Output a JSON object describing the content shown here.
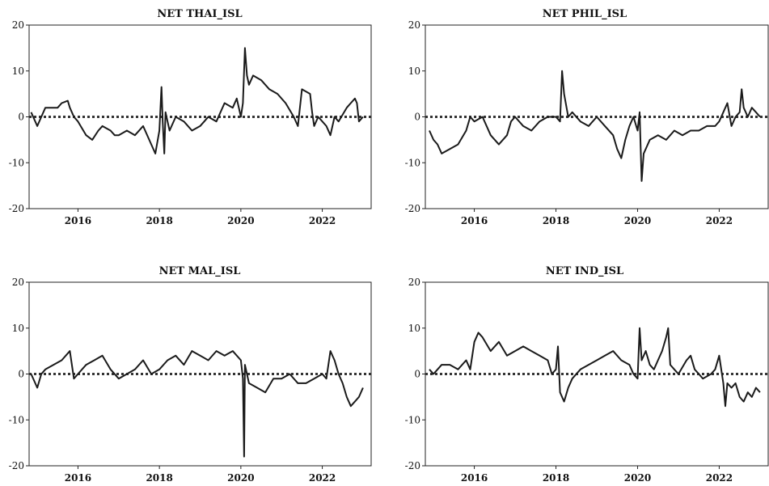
{
  "chart_data": [
    {
      "type": "line",
      "title": "NET THAI_ISL",
      "xlabel": "",
      "ylabel": "",
      "xlim": [
        2014.8,
        2023.2
      ],
      "ylim": [
        -20,
        20
      ],
      "x_ticks": [
        "2016",
        "2018",
        "2020",
        "2022"
      ],
      "y_ticks": [
        "20",
        "10",
        "0",
        "-10",
        "-20"
      ],
      "reference_line": 0,
      "series": [
        {
          "x": [
            2014.85,
            2015.0,
            2015.1,
            2015.2,
            2015.3,
            2015.5,
            2015.6,
            2015.75,
            2015.8,
            2015.9,
            2016.0,
            2016.2,
            2016.35,
            2016.5,
            2016.6,
            2016.8,
            2016.9,
            2017.0,
            2017.2,
            2017.4,
            2017.6,
            2017.8,
            2017.9,
            2018.0,
            2018.05,
            2018.08,
            2018.12,
            2018.15,
            2018.2,
            2018.25,
            2018.4,
            2018.6,
            2018.8,
            2019.0,
            2019.2,
            2019.4,
            2019.6,
            2019.8,
            2019.9,
            2020.0,
            2020.05,
            2020.1,
            2020.15,
            2020.2,
            2020.3,
            2020.5,
            2020.7,
            2020.9,
            2021.1,
            2021.3,
            2021.4,
            2021.5,
            2021.7,
            2021.75,
            2021.8,
            2021.9,
            2022.0,
            2022.1,
            2022.2,
            2022.3,
            2022.4,
            2022.6,
            2022.7,
            2022.8,
            2022.85,
            2022.9,
            2023.0
          ],
          "y": [
            1,
            -2,
            0,
            2,
            2,
            2,
            3,
            3.5,
            2,
            0,
            -1,
            -4,
            -5,
            -3,
            -2,
            -3,
            -4,
            -4,
            -3,
            -4,
            -2,
            -6,
            -8,
            -3,
            6.5,
            -1,
            -8,
            1,
            -1,
            -3,
            0,
            -1,
            -3,
            -2,
            0,
            -1,
            3,
            2,
            4,
            0,
            3,
            15,
            9,
            7,
            9,
            8,
            6,
            5,
            3,
            0,
            -2,
            6,
            5,
            1,
            -2,
            0,
            -1,
            -2,
            -4,
            0,
            -1,
            2,
            3,
            4,
            3,
            -1,
            0
          ]
        }
      ]
    },
    {
      "type": "line",
      "title": "NET PHIL_ISL",
      "xlabel": "",
      "ylabel": "",
      "xlim": [
        2014.8,
        2023.2
      ],
      "ylim": [
        -20,
        20
      ],
      "x_ticks": [
        "2016",
        "2018",
        "2020",
        "2022"
      ],
      "y_ticks": [
        "20",
        "10",
        "0",
        "-10",
        "-20"
      ],
      "reference_line": 0,
      "series": [
        {
          "x": [
            2014.9,
            2015.0,
            2015.1,
            2015.2,
            2015.4,
            2015.6,
            2015.8,
            2015.9,
            2016.0,
            2016.2,
            2016.4,
            2016.6,
            2016.8,
            2016.9,
            2017.0,
            2017.2,
            2017.4,
            2017.6,
            2017.8,
            2018.0,
            2018.1,
            2018.15,
            2018.2,
            2018.3,
            2018.4,
            2018.6,
            2018.8,
            2019.0,
            2019.2,
            2019.4,
            2019.5,
            2019.6,
            2019.7,
            2019.8,
            2019.9,
            2020.0,
            2020.05,
            2020.1,
            2020.15,
            2020.2,
            2020.3,
            2020.5,
            2020.7,
            2020.9,
            2021.1,
            2021.3,
            2021.5,
            2021.7,
            2021.9,
            2022.0,
            2022.1,
            2022.2,
            2022.3,
            2022.4,
            2022.5,
            2022.55,
            2022.6,
            2022.7,
            2022.8,
            2022.9,
            2023.0
          ],
          "y": [
            -3,
            -5,
            -6,
            -8,
            -7,
            -6,
            -3,
            0,
            -1,
            0,
            -4,
            -6,
            -4,
            -1,
            0,
            -2,
            -3,
            -1,
            0,
            0,
            -1,
            10,
            5,
            0,
            1,
            -1,
            -2,
            0,
            -2,
            -4,
            -7,
            -9,
            -5,
            -2,
            0,
            -3,
            1,
            -14,
            -8,
            -7,
            -5,
            -4,
            -5,
            -3,
            -4,
            -3,
            -3,
            -2,
            -2,
            -1,
            1,
            3,
            -2,
            0,
            1,
            6,
            2,
            0,
            2,
            1,
            0
          ]
        }
      ]
    },
    {
      "type": "line",
      "title": "NET MAL_ISL",
      "xlabel": "",
      "ylabel": "",
      "xlim": [
        2014.8,
        2023.2
      ],
      "ylim": [
        -20,
        20
      ],
      "x_ticks": [
        "2016",
        "2018",
        "2020",
        "2022"
      ],
      "y_ticks": [
        "20",
        "10",
        "0",
        "-10",
        "-20"
      ],
      "reference_line": 0,
      "series": [
        {
          "x": [
            2014.85,
            2015.0,
            2015.1,
            2015.2,
            2015.4,
            2015.6,
            2015.8,
            2015.9,
            2016.0,
            2016.2,
            2016.4,
            2016.6,
            2016.8,
            2017.0,
            2017.2,
            2017.4,
            2017.6,
            2017.8,
            2018.0,
            2018.2,
            2018.4,
            2018.6,
            2018.8,
            2019.0,
            2019.2,
            2019.4,
            2019.6,
            2019.8,
            2020.0,
            2020.05,
            2020.08,
            2020.1,
            2020.2,
            2020.4,
            2020.6,
            2020.8,
            2021.0,
            2021.2,
            2021.4,
            2021.6,
            2021.8,
            2022.0,
            2022.1,
            2022.2,
            2022.3,
            2022.4,
            2022.5,
            2022.6,
            2022.7,
            2022.8,
            2022.9,
            2023.0
          ],
          "y": [
            0,
            -3,
            0,
            1,
            2,
            3,
            5,
            -1,
            0,
            2,
            3,
            4,
            1,
            -1,
            0,
            1,
            3,
            0,
            1,
            3,
            4,
            2,
            5,
            4,
            3,
            5,
            4,
            5,
            3,
            -1,
            -18,
            2,
            -2,
            -3,
            -4,
            -1,
            -1,
            0,
            -2,
            -2,
            -1,
            0,
            -1,
            5,
            3,
            0,
            -2,
            -5,
            -7,
            -6,
            -5,
            -3
          ]
        }
      ]
    },
    {
      "type": "line",
      "title": "NET IND_ISL",
      "xlabel": "",
      "ylabel": "",
      "xlim": [
        2014.8,
        2023.2
      ],
      "ylim": [
        -20,
        20
      ],
      "x_ticks": [
        "2016",
        "2018",
        "2020",
        "2022"
      ],
      "y_ticks": [
        "20",
        "10",
        "0",
        "-10",
        "-20"
      ],
      "reference_line": 0,
      "series": [
        {
          "x": [
            2014.9,
            2015.0,
            2015.1,
            2015.2,
            2015.4,
            2015.6,
            2015.8,
            2015.9,
            2016.0,
            2016.1,
            2016.2,
            2016.4,
            2016.6,
            2016.8,
            2017.0,
            2017.2,
            2017.4,
            2017.6,
            2017.8,
            2017.9,
            2018.0,
            2018.05,
            2018.1,
            2018.2,
            2018.3,
            2018.4,
            2018.6,
            2018.8,
            2019.0,
            2019.2,
            2019.4,
            2019.6,
            2019.8,
            2019.9,
            2020.0,
            2020.05,
            2020.1,
            2020.2,
            2020.3,
            2020.4,
            2020.5,
            2020.6,
            2020.7,
            2020.75,
            2020.8,
            2020.9,
            2021.0,
            2021.2,
            2021.3,
            2021.4,
            2021.5,
            2021.6,
            2021.8,
            2021.9,
            2022.0,
            2022.1,
            2022.15,
            2022.2,
            2022.3,
            2022.4,
            2022.5,
            2022.6,
            2022.7,
            2022.8,
            2022.9,
            2023.0
          ],
          "y": [
            1,
            0,
            1,
            2,
            2,
            1,
            3,
            1,
            7,
            9,
            8,
            5,
            7,
            4,
            5,
            6,
            5,
            4,
            3,
            0,
            1,
            6,
            -4,
            -6,
            -3,
            -1,
            1,
            2,
            3,
            4,
            5,
            3,
            2,
            0,
            -1,
            10,
            3,
            5,
            2,
            1,
            3,
            5,
            8,
            10,
            2,
            1,
            0,
            3,
            4,
            1,
            0,
            -1,
            0,
            1,
            4,
            -2,
            -7,
            -2,
            -3,
            -2,
            -5,
            -6,
            -4,
            -5,
            -3,
            -4
          ]
        }
      ]
    }
  ]
}
